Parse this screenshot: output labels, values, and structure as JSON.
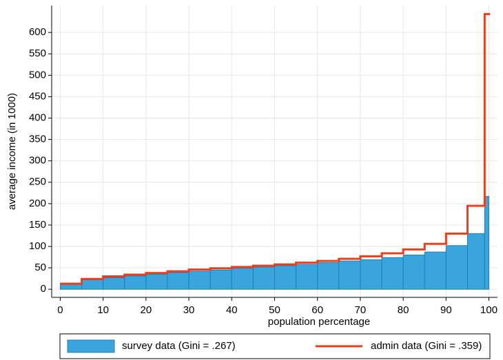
{
  "chart_data": {
    "type": "histogram",
    "xlabel": "population percentage",
    "ylabel": "average income (in 1000)",
    "bins": [
      0,
      5,
      10,
      15,
      20,
      25,
      30,
      35,
      40,
      45,
      50,
      55,
      60,
      65,
      70,
      75,
      80,
      85,
      90,
      95,
      99,
      100
    ],
    "series": [
      {
        "name": "survey data (Gini = .267)",
        "color": "#3aa5dc",
        "style": "bars",
        "values": [
          13,
          22,
          27,
          31,
          35,
          39,
          42,
          45,
          49,
          52,
          55,
          58,
          62,
          66,
          69,
          74,
          80,
          87,
          102,
          130,
          217
        ]
      },
      {
        "name": "admin data (Gini = .359)",
        "color": "#e8401c",
        "style": "step",
        "values": [
          13,
          24,
          30,
          34,
          38,
          42,
          46,
          49,
          52,
          55,
          58,
          62,
          66,
          71,
          77,
          84,
          93,
          106,
          130,
          195,
          643
        ]
      }
    ],
    "xlim": [
      -2,
      102
    ],
    "ylim": [
      -19,
      663
    ],
    "xticks": [
      0,
      10,
      20,
      30,
      40,
      50,
      60,
      70,
      80,
      90,
      100
    ],
    "yticks": [
      0,
      50,
      100,
      150,
      200,
      250,
      300,
      350,
      400,
      450,
      500,
      550,
      600
    ],
    "grid": true,
    "legend": "bottom"
  }
}
